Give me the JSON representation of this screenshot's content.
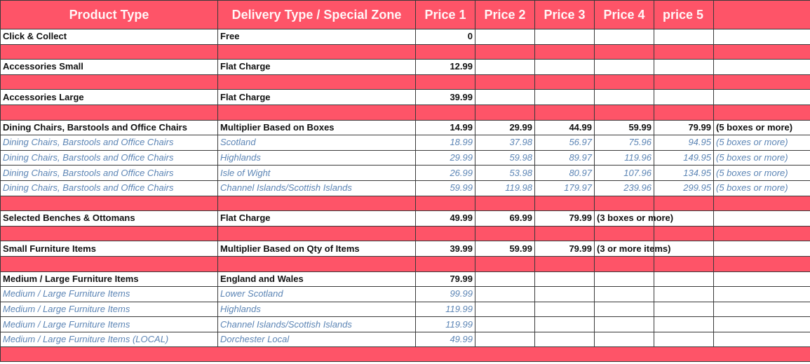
{
  "header": {
    "columns": [
      "Product Type",
      "Delivery Type / Special Zone",
      "Price 1",
      "Price 2",
      "Price 3",
      "Price 4",
      "price 5",
      ""
    ]
  },
  "colors": {
    "header_background": "#fe5468",
    "separator_row": "#fe5468",
    "header_text": "#ffffff",
    "main_text": "#111111",
    "sub_text": "#5c85b5"
  },
  "rows": [
    {
      "kind": "main",
      "product": "Click & Collect",
      "delivery": "Free",
      "p1": "0",
      "p2": "",
      "p3": "",
      "p4": "",
      "p5": "",
      "note": ""
    },
    {
      "kind": "pink"
    },
    {
      "kind": "main",
      "product": "Accessories Small",
      "delivery": "Flat Charge",
      "p1": "12.99",
      "p2": "",
      "p3": "",
      "p4": "",
      "p5": "",
      "note": ""
    },
    {
      "kind": "pink"
    },
    {
      "kind": "main",
      "product": "Accessories Large",
      "delivery": "Flat Charge",
      "p1": "39.99",
      "p2": "",
      "p3": "",
      "p4": "",
      "p5": "",
      "note": ""
    },
    {
      "kind": "pink"
    },
    {
      "kind": "main",
      "product": "Dining Chairs, Barstools and Office Chairs",
      "delivery": "Multiplier Based on Boxes",
      "p1": "14.99",
      "p2": "29.99",
      "p3": "44.99",
      "p4": "59.99",
      "p5": "79.99",
      "note": "(5 boxes or more)"
    },
    {
      "kind": "sub",
      "product": "Dining Chairs, Barstools and Office Chairs",
      "delivery": "Scotland",
      "p1": "18.99",
      "p2": "37.98",
      "p3": "56.97",
      "p4": "75.96",
      "p5": "94.95",
      "note": "(5 boxes or more)"
    },
    {
      "kind": "sub",
      "product": "Dining Chairs, Barstools and Office Chairs",
      "delivery": "Highlands",
      "p1": "29.99",
      "p2": "59.98",
      "p3": "89.97",
      "p4": "119.96",
      "p5": "149.95",
      "note": "(5 boxes or more)"
    },
    {
      "kind": "sub",
      "product": "Dining Chairs, Barstools and Office Chairs",
      "delivery": "Isle of Wight",
      "p1": "26.99",
      "p2": "53.98",
      "p3": "80.97",
      "p4": "107.96",
      "p5": "134.95",
      "note": "(5 boxes or more)"
    },
    {
      "kind": "sub",
      "product": "Dining Chairs, Barstools and Office Chairs",
      "delivery": "Channel Islands/Scottish Islands",
      "p1": "59.99",
      "p2": "119.98",
      "p3": "179.97",
      "p4": "239.96",
      "p5": "299.95",
      "note": "(5 boxes or more)"
    },
    {
      "kind": "pink"
    },
    {
      "kind": "main",
      "product": "Selected Benches & Ottomans",
      "delivery": "Flat Charge",
      "p1": "49.99",
      "p2": "69.99",
      "p3": "79.99",
      "p4": "(3 boxes or more)",
      "p5": "",
      "note": ""
    },
    {
      "kind": "pink"
    },
    {
      "kind": "main",
      "product": "Small Furniture Items",
      "delivery": "Multiplier Based on Qty of Items",
      "p1": "39.99",
      "p2": "59.99",
      "p3": "79.99",
      "p4": "(3 or more items)",
      "p5": "",
      "note": ""
    },
    {
      "kind": "pink"
    },
    {
      "kind": "main",
      "product": "Medium / Large Furniture Items",
      "delivery": "England and Wales",
      "p1": "79.99",
      "p2": "",
      "p3": "",
      "p4": "",
      "p5": "",
      "note": ""
    },
    {
      "kind": "sub",
      "product": "Medium / Large Furniture Items",
      "delivery": "Lower Scotland",
      "p1": "99.99",
      "p2": "",
      "p3": "",
      "p4": "",
      "p5": "",
      "note": ""
    },
    {
      "kind": "sub",
      "product": "Medium / Large Furniture Items",
      "delivery": "Highlands",
      "p1": "119.99",
      "p2": "",
      "p3": "",
      "p4": "",
      "p5": "",
      "note": ""
    },
    {
      "kind": "sub",
      "product": "Medium / Large Furniture Items",
      "delivery": "Channel Islands/Scottish Islands",
      "p1": "119.99",
      "p2": "",
      "p3": "",
      "p4": "",
      "p5": "",
      "note": ""
    },
    {
      "kind": "sub",
      "product": "Medium / Large Furniture Items (LOCAL)",
      "delivery": "Dorchester Local",
      "p1": "49.99",
      "p2": "",
      "p3": "",
      "p4": "",
      "p5": "",
      "note": ""
    }
  ]
}
